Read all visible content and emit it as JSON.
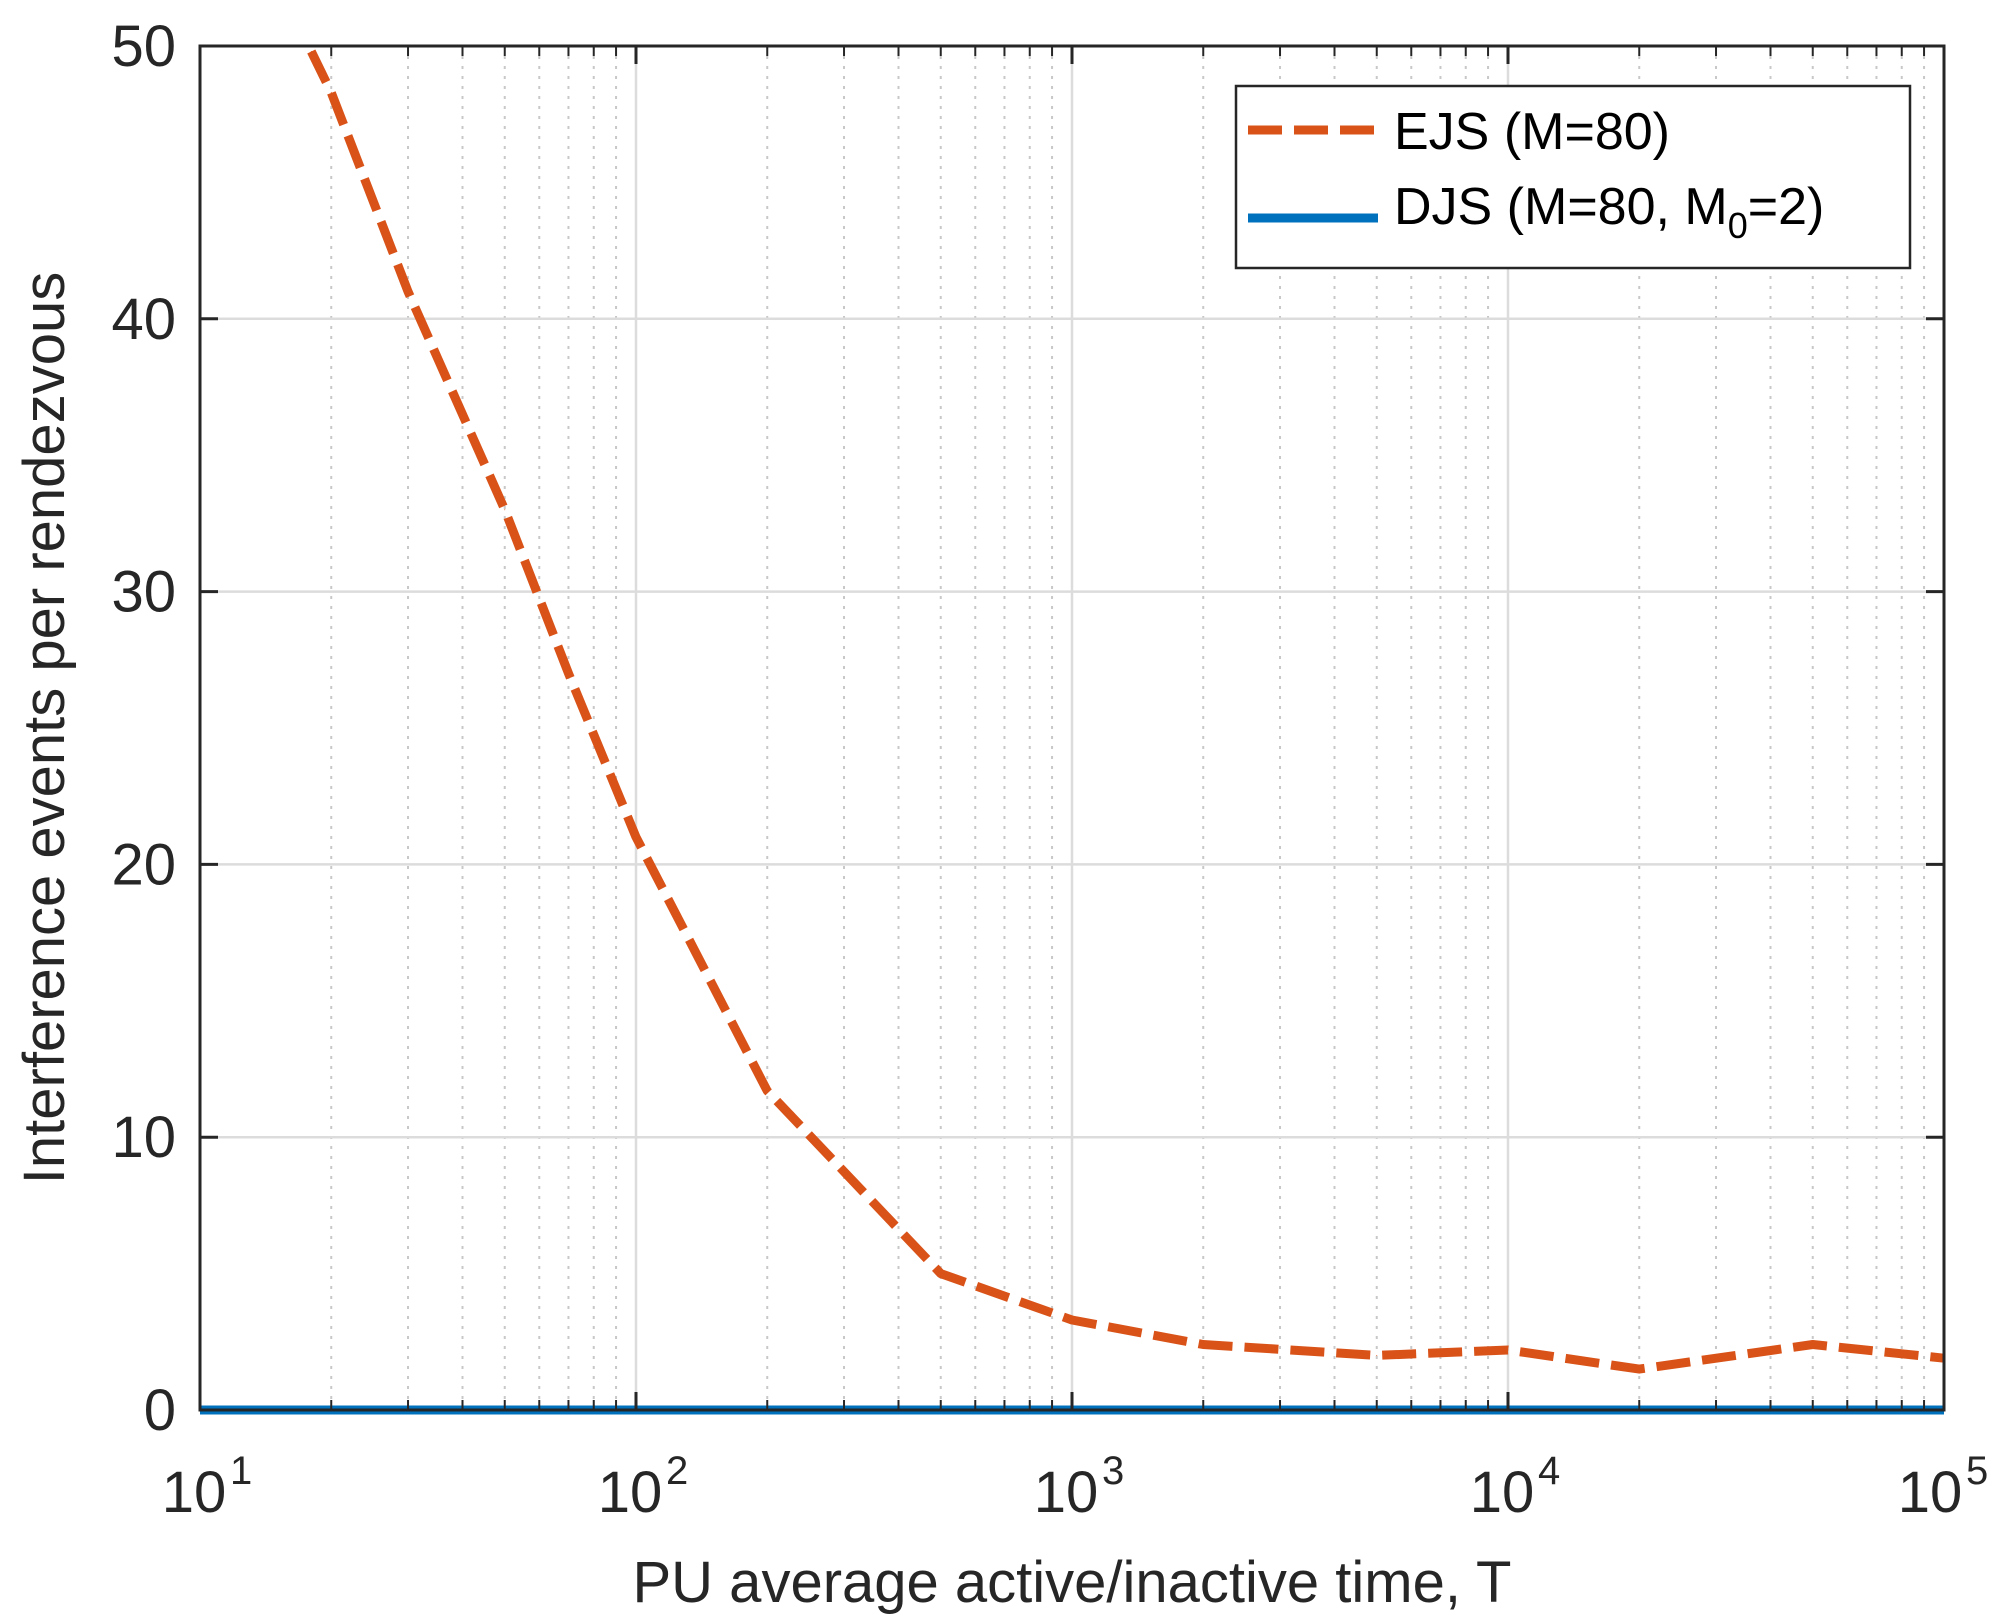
{
  "chart_data": {
    "type": "line",
    "xscale": "log",
    "xlim": [
      10,
      100000
    ],
    "ylim": [
      0,
      50
    ],
    "xlabel": "PU average active/inactive time, T",
    "ylabel": "Interference events per rendezvous",
    "grid": true,
    "legend_position": "top-right",
    "x_ticks": [
      {
        "base": "10",
        "exp": "1",
        "value": 10
      },
      {
        "base": "10",
        "exp": "2",
        "value": 100
      },
      {
        "base": "10",
        "exp": "3",
        "value": 1000
      },
      {
        "base": "10",
        "exp": "4",
        "value": 10000
      },
      {
        "base": "10",
        "exp": "5",
        "value": 100000
      }
    ],
    "y_ticks": [
      {
        "label": "0",
        "value": 0
      },
      {
        "label": "10",
        "value": 10
      },
      {
        "label": "20",
        "value": 20
      },
      {
        "label": "30",
        "value": 30
      },
      {
        "label": "40",
        "value": 40
      },
      {
        "label": "50",
        "value": 50
      }
    ],
    "series": [
      {
        "name": "EJS (M=80)",
        "legend_label": "EJS (M=80)",
        "color": "#D95319",
        "style": "dashed",
        "x": [
          18,
          20,
          30,
          50,
          70,
          100,
          200,
          500,
          1000,
          2000,
          5000,
          10000,
          20000,
          50000,
          100000
        ],
        "y": [
          49.8,
          48.3,
          41.0,
          33.0,
          27.0,
          21.0,
          11.7,
          5.0,
          3.3,
          2.4,
          2.0,
          2.2,
          1.5,
          2.4,
          1.9
        ]
      },
      {
        "name": "DJS (M=80, M0=2)",
        "legend_label_main": "DJS (M=80, M",
        "legend_label_sub": "0",
        "legend_label_end": "=2)",
        "color": "#0072BD",
        "style": "solid",
        "x": [
          10,
          100000
        ],
        "y": [
          0,
          0
        ]
      }
    ]
  }
}
